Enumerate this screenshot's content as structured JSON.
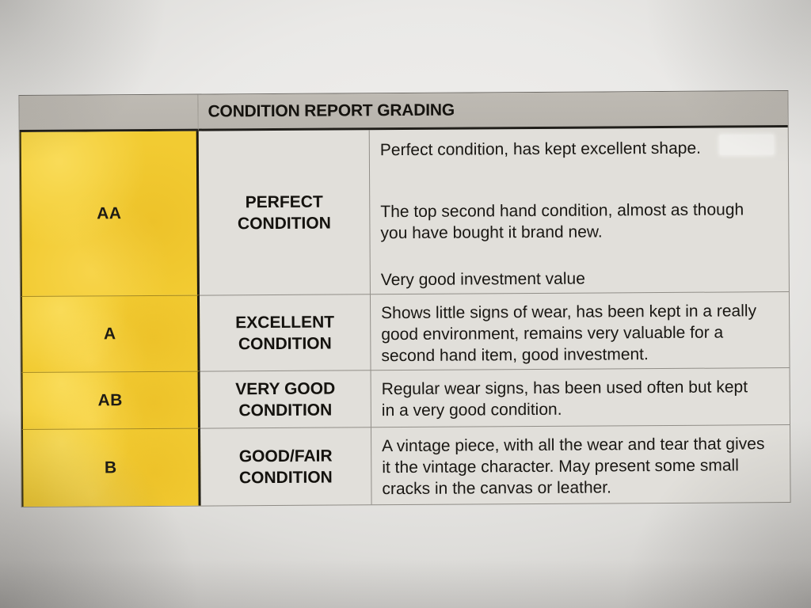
{
  "table": {
    "header": {
      "title": "CONDITION REPORT GRADING"
    },
    "rows": [
      {
        "grade": "AA",
        "label": "PERFECT CONDITION",
        "paragraphs": [
          "Perfect condition, has kept excellent shape.",
          "The top second hand condition, almost as though you have bought it brand new.",
          "Very good investment value"
        ]
      },
      {
        "grade": "A",
        "label": "EXCELLENT CONDITION",
        "paragraphs": [
          "Shows little signs of wear, has been kept in a really good environment, remains very valuable for a second hand item, good investment."
        ]
      },
      {
        "grade": "AB",
        "label": "VERY GOOD CONDITION",
        "paragraphs": [
          "Regular wear signs, has been used often but kept in a very good condition."
        ]
      },
      {
        "grade": "B",
        "label": "GOOD/FAIR CONDITION",
        "paragraphs": [
          "A vintage piece, with all the wear and tear that gives it the vintage character. May present some small cracks in the canvas or leather."
        ]
      }
    ],
    "colors": {
      "grade_column": "#F2CB32",
      "header_band": "#BBB7B0",
      "paper_cell": "#E1DFDA",
      "heavy_rule": "#1D1B16"
    }
  }
}
